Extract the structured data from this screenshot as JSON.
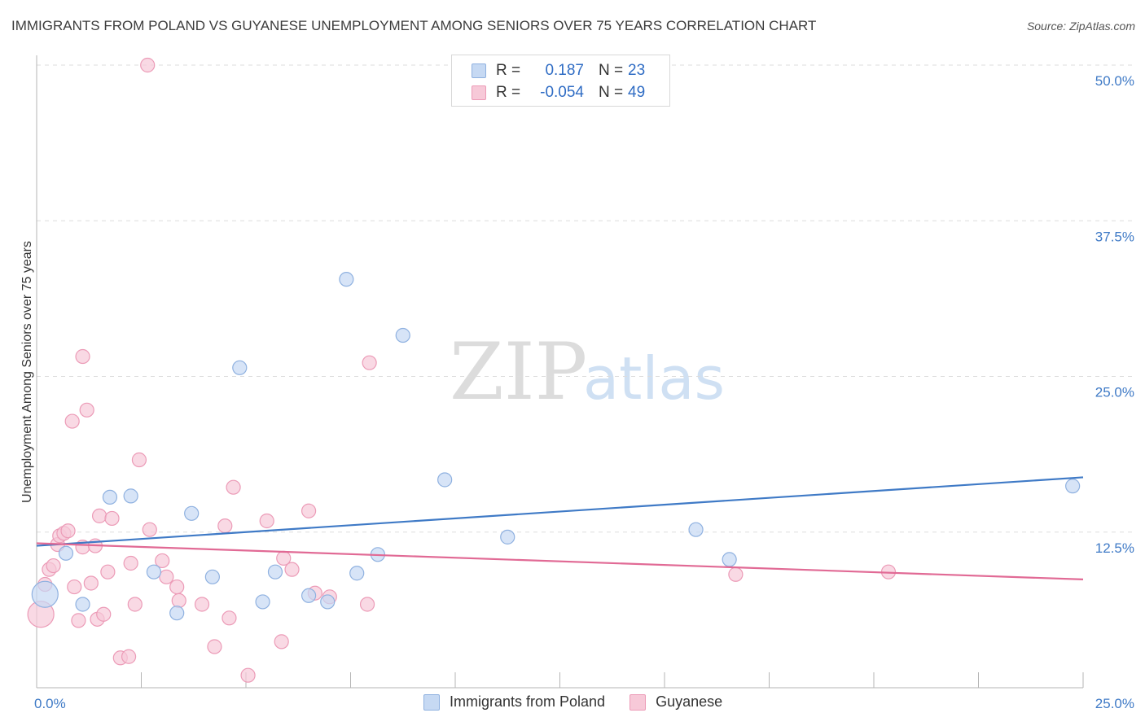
{
  "colors": {
    "blue": "#3f7ac6",
    "blue_fill": "#c6d9f3",
    "blue_stroke": "#8fb1e0",
    "pink": "#e16a95",
    "pink_fill": "#f7c9d8",
    "pink_stroke": "#ec9bb7",
    "grid": "#dddddd",
    "axis": "#b5b5b5"
  },
  "chart_data": {
    "type": "scatter",
    "title": "IMMIGRANTS FROM POLAND VS GUYANESE UNEMPLOYMENT AMONG SENIORS OVER 75 YEARS CORRELATION CHART",
    "source": "Source: ZipAtlas.com",
    "xlabel": "",
    "ylabel": "Unemployment Among Seniors over 75 years",
    "xlim": [
      0,
      25
    ],
    "ylim": [
      0,
      50
    ],
    "x_tick_labels": [
      "0.0%",
      "25.0%"
    ],
    "y_ticks": [
      12.5,
      25.0,
      37.5,
      50.0
    ],
    "y_tick_labels": [
      "12.5%",
      "25.0%",
      "37.5%",
      "50.0%"
    ],
    "grid": true,
    "watermark": [
      "ZIP",
      "atlas"
    ],
    "legend_top": [
      {
        "series": "Immigrants from Poland",
        "r_label": "R =",
        "r_value": "0.187",
        "n_label": "N =",
        "n_value": "23"
      },
      {
        "series": "Guyanese",
        "r_label": "R =",
        "r_value": "-0.054",
        "n_label": "N =",
        "n_value": "49"
      }
    ],
    "series": [
      {
        "name": "Immigrants from Poland",
        "color": "#3f7ac6",
        "trend": {
          "x": [
            0,
            25
          ],
          "y": [
            11.4,
            16.9
          ]
        },
        "points": [
          {
            "x": 0.2,
            "y": 7.5,
            "big": true
          },
          {
            "x": 0.7,
            "y": 10.8
          },
          {
            "x": 1.1,
            "y": 6.7
          },
          {
            "x": 1.75,
            "y": 15.3
          },
          {
            "x": 2.25,
            "y": 15.4
          },
          {
            "x": 2.8,
            "y": 9.3
          },
          {
            "x": 3.35,
            "y": 6.0
          },
          {
            "x": 3.7,
            "y": 14.0
          },
          {
            "x": 4.2,
            "y": 8.9
          },
          {
            "x": 4.85,
            "y": 25.7
          },
          {
            "x": 5.4,
            "y": 6.9
          },
          {
            "x": 5.7,
            "y": 9.3
          },
          {
            "x": 6.5,
            "y": 7.4
          },
          {
            "x": 6.95,
            "y": 6.9
          },
          {
            "x": 7.4,
            "y": 32.8
          },
          {
            "x": 7.65,
            "y": 9.2
          },
          {
            "x": 8.15,
            "y": 10.7
          },
          {
            "x": 8.75,
            "y": 28.3
          },
          {
            "x": 9.75,
            "y": 16.7
          },
          {
            "x": 11.25,
            "y": 12.1
          },
          {
            "x": 15.75,
            "y": 12.7
          },
          {
            "x": 16.55,
            "y": 10.3
          },
          {
            "x": 24.75,
            "y": 16.2
          }
        ]
      },
      {
        "name": "Guyanese",
        "color": "#e16a95",
        "trend": {
          "x": [
            0,
            25
          ],
          "y": [
            11.6,
            8.7
          ]
        },
        "points": [
          {
            "x": 0.1,
            "y": 5.9,
            "big": true
          },
          {
            "x": 0.2,
            "y": 8.3
          },
          {
            "x": 0.3,
            "y": 9.5
          },
          {
            "x": 0.4,
            "y": 9.8
          },
          {
            "x": 0.5,
            "y": 11.5
          },
          {
            "x": 0.55,
            "y": 12.2
          },
          {
            "x": 0.65,
            "y": 12.4
          },
          {
            "x": 0.75,
            "y": 12.6
          },
          {
            "x": 0.85,
            "y": 21.4
          },
          {
            "x": 0.9,
            "y": 8.1
          },
          {
            "x": 1.0,
            "y": 5.4
          },
          {
            "x": 1.1,
            "y": 11.3
          },
          {
            "x": 1.1,
            "y": 26.6
          },
          {
            "x": 1.2,
            "y": 22.3
          },
          {
            "x": 1.3,
            "y": 8.4
          },
          {
            "x": 1.4,
            "y": 11.4
          },
          {
            "x": 1.45,
            "y": 5.5
          },
          {
            "x": 1.5,
            "y": 13.8
          },
          {
            "x": 1.6,
            "y": 5.9
          },
          {
            "x": 1.7,
            "y": 9.3
          },
          {
            "x": 1.8,
            "y": 13.6
          },
          {
            "x": 2.0,
            "y": 2.4
          },
          {
            "x": 2.2,
            "y": 2.5
          },
          {
            "x": 2.25,
            "y": 10.0
          },
          {
            "x": 2.35,
            "y": 6.7
          },
          {
            "x": 2.45,
            "y": 18.3
          },
          {
            "x": 2.7,
            "y": 12.7
          },
          {
            "x": 2.65,
            "y": 50.0
          },
          {
            "x": 3.0,
            "y": 10.2
          },
          {
            "x": 3.1,
            "y": 8.9
          },
          {
            "x": 3.35,
            "y": 8.1
          },
          {
            "x": 3.4,
            "y": 7.0
          },
          {
            "x": 3.95,
            "y": 6.7
          },
          {
            "x": 4.25,
            "y": 3.3
          },
          {
            "x": 4.5,
            "y": 13.0
          },
          {
            "x": 4.6,
            "y": 5.6
          },
          {
            "x": 4.7,
            "y": 16.1
          },
          {
            "x": 5.05,
            "y": 1.0
          },
          {
            "x": 5.5,
            "y": 13.4
          },
          {
            "x": 5.85,
            "y": 3.7
          },
          {
            "x": 5.9,
            "y": 10.4
          },
          {
            "x": 6.1,
            "y": 9.5
          },
          {
            "x": 6.5,
            "y": 14.2
          },
          {
            "x": 6.65,
            "y": 7.6
          },
          {
            "x": 7.9,
            "y": 6.7
          },
          {
            "x": 7.95,
            "y": 26.1
          },
          {
            "x": 16.7,
            "y": 9.1
          },
          {
            "x": 20.35,
            "y": 9.3
          },
          {
            "x": 7.0,
            "y": 7.3
          }
        ]
      }
    ]
  }
}
